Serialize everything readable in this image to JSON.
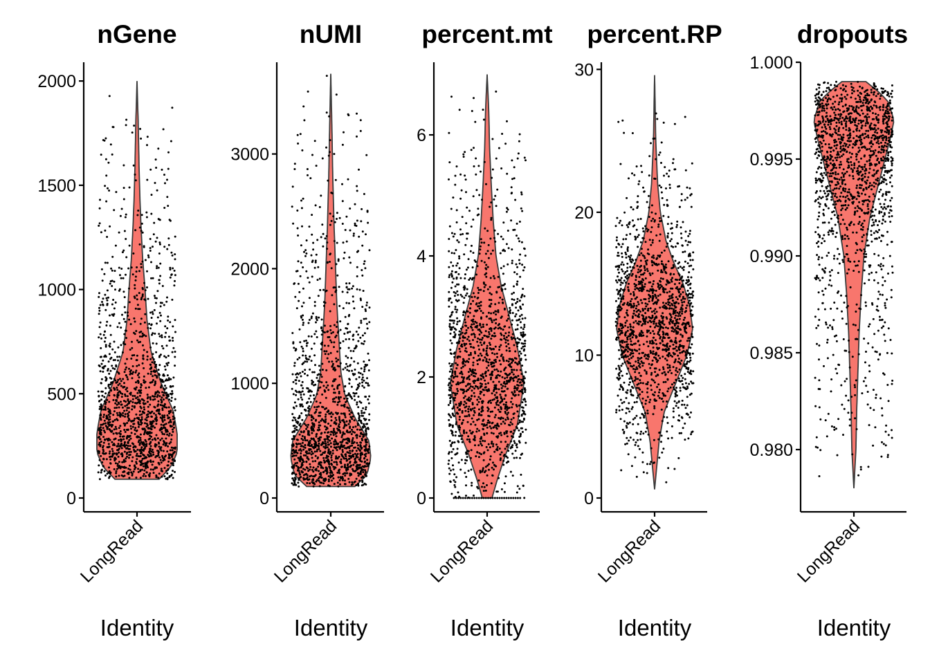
{
  "figure": {
    "background": "#ffffff",
    "violin_fill": "#F8766D",
    "violin_stroke": "#3a3a3a",
    "point_color": "#000000"
  },
  "chart_data": [
    {
      "type": "violin",
      "title": "nGene",
      "xlabel": "Identity",
      "ylabel": "",
      "categories": [
        "LongRead"
      ],
      "ylim": [
        0,
        2090
      ],
      "yticks": [
        0,
        500,
        1000,
        1500,
        2000
      ],
      "ytick_labels": [
        "0",
        "500",
        "1000",
        "1500",
        "2000"
      ],
      "distribution": {
        "min": 90,
        "max": 2000,
        "density_peak": 310,
        "median": 340
      }
    },
    {
      "type": "violin",
      "title": "nUMI",
      "xlabel": "Identity",
      "ylabel": "",
      "categories": [
        "LongRead"
      ],
      "ylim": [
        0,
        3800
      ],
      "yticks": [
        0,
        1000,
        2000,
        3000
      ],
      "ytick_labels": [
        "0",
        "1000",
        "2000",
        "3000"
      ],
      "distribution": {
        "min": 100,
        "max": 3700,
        "density_peak": 420,
        "median": 520
      }
    },
    {
      "type": "violin",
      "title": "percent.mt",
      "xlabel": "Identity",
      "ylabel": "",
      "categories": [
        "LongRead"
      ],
      "ylim": [
        0,
        7.2
      ],
      "yticks": [
        0,
        2,
        4,
        6
      ],
      "ytick_labels": [
        "0",
        "2",
        "4",
        "6"
      ],
      "distribution": {
        "min": 0,
        "max": 7,
        "density_peak": 1.9,
        "median": 2.0
      }
    },
    {
      "type": "violin",
      "title": "percent.RP",
      "xlabel": "Identity",
      "ylabel": "",
      "categories": [
        "LongRead"
      ],
      "ylim": [
        0,
        30.5
      ],
      "yticks": [
        0,
        10,
        20,
        30
      ],
      "ytick_labels": [
        "0",
        "10",
        "20",
        "30"
      ],
      "distribution": {
        "min": 0.6,
        "max": 29.6,
        "density_peak": 11.8,
        "median": 12
      }
    },
    {
      "type": "violin",
      "title": "dropouts",
      "xlabel": "Identity",
      "ylabel": "",
      "categories": [
        "LongRead"
      ],
      "ylim": [
        0.9775,
        1.0
      ],
      "yticks": [
        0.98,
        0.985,
        0.99,
        0.995,
        1.0
      ],
      "ytick_labels": [
        "0.980",
        "0.985",
        "0.990",
        "0.995",
        "1.000"
      ],
      "distribution": {
        "min": 0.978,
        "max": 0.999,
        "density_peak": 0.997,
        "median": 0.9965
      }
    }
  ]
}
